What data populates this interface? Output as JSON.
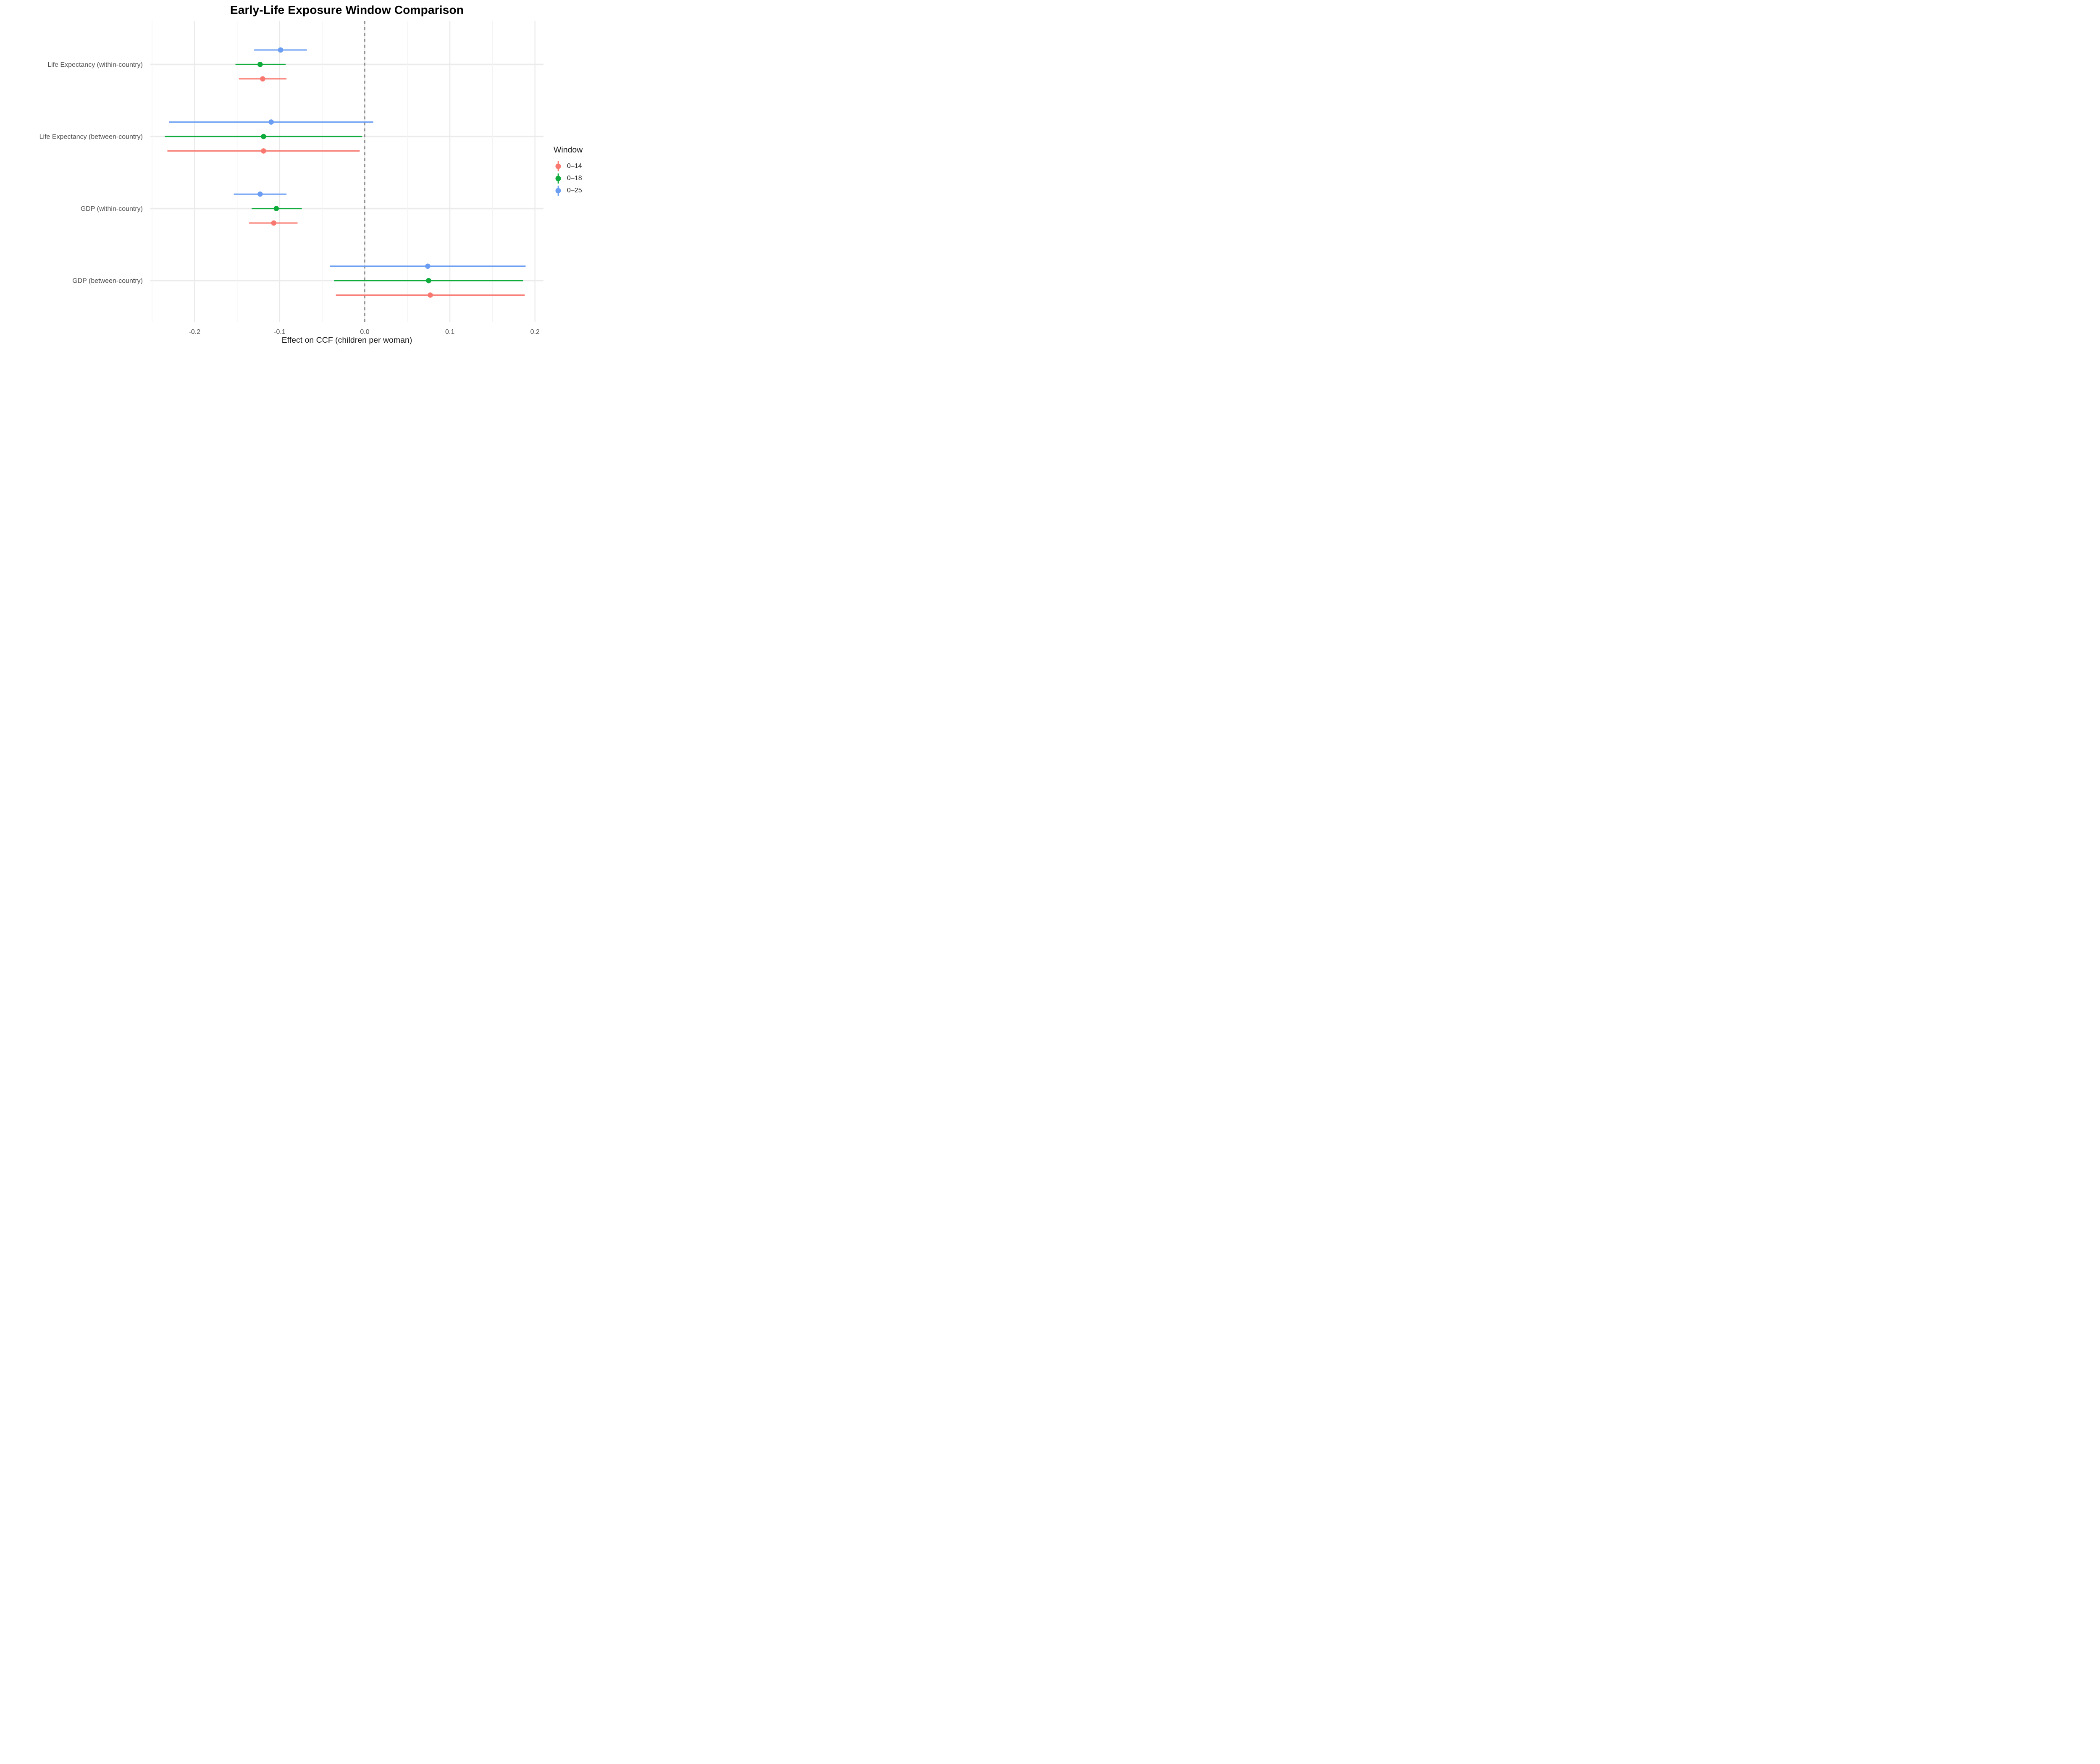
{
  "chart_data": {
    "type": "pointrange-forest",
    "title": "Early-Life Exposure Window Comparison",
    "xlabel": "Effect on CCF (children per woman)",
    "ylabel": "",
    "xlim": [
      -0.252,
      0.21
    ],
    "x_major_ticks": [
      {
        "value": -0.2,
        "label": "-0.2"
      },
      {
        "value": -0.1,
        "label": "-0.1"
      },
      {
        "value": 0.0,
        "label": "0.0"
      },
      {
        "value": 0.1,
        "label": "0.1"
      },
      {
        "value": 0.2,
        "label": "0.2"
      }
    ],
    "x_minor_ticks": [
      -0.25,
      -0.15,
      -0.05,
      0.05,
      0.15
    ],
    "grid": {
      "major_color": "#E9E9E9",
      "minor_color": "#F3F3F3",
      "row_band_color": "#EBEBEB"
    },
    "zero_line": {
      "x": 0.0,
      "style": "dashed",
      "color": "#6A6A6A"
    },
    "text_colors": {
      "axis_text": "#4D4D4D",
      "axis_title": "#1A1A1A",
      "title": "#000000"
    },
    "categories": [
      "Life Expectancy (within-country)",
      "Life Expectancy (between-country)",
      "GDP (within-country)",
      "GDP (between-country)"
    ],
    "series": [
      {
        "name": "0–25",
        "color": "#6B9EF2",
        "dodge": -1,
        "points": [
          {
            "estimate": -0.099,
            "lower": -0.13,
            "upper": -0.068
          },
          {
            "estimate": -0.11,
            "lower": -0.23,
            "upper": 0.01
          },
          {
            "estimate": -0.123,
            "lower": -0.154,
            "upper": -0.092
          },
          {
            "estimate": 0.074,
            "lower": -0.041,
            "upper": 0.189
          }
        ]
      },
      {
        "name": "0–18",
        "color": "#10AB3D",
        "dodge": 0,
        "points": [
          {
            "estimate": -0.123,
            "lower": -0.152,
            "upper": -0.093
          },
          {
            "estimate": -0.119,
            "lower": -0.235,
            "upper": -0.003
          },
          {
            "estimate": -0.104,
            "lower": -0.133,
            "upper": -0.074
          },
          {
            "estimate": 0.075,
            "lower": -0.036,
            "upper": 0.186
          }
        ]
      },
      {
        "name": "0–14",
        "color": "#F8786F",
        "dodge": 1,
        "points": [
          {
            "estimate": -0.12,
            "lower": -0.148,
            "upper": -0.092
          },
          {
            "estimate": -0.119,
            "lower": -0.232,
            "upper": -0.006
          },
          {
            "estimate": -0.107,
            "lower": -0.136,
            "upper": -0.079
          },
          {
            "estimate": 0.077,
            "lower": -0.034,
            "upper": 0.188
          }
        ]
      }
    ],
    "legend": {
      "title": "Window",
      "position": "right",
      "entries": [
        {
          "label": "0–14",
          "color": "#F8786F"
        },
        {
          "label": "0–18",
          "color": "#10AB3D"
        },
        {
          "label": "0–25",
          "color": "#6B9EF2"
        }
      ]
    }
  }
}
